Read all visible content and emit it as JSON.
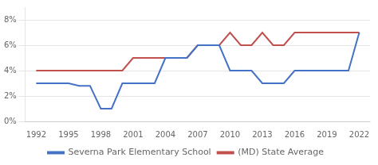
{
  "chart_data": {
    "type": "line",
    "series": [
      {
        "name": "Severna Park Elementary School",
        "color": "#4472c4",
        "x": [
          1992,
          1993,
          1995,
          1996,
          1997,
          1998,
          1999,
          2000,
          2001,
          2002,
          2003,
          2004,
          2005,
          2006,
          2007,
          2008,
          2009,
          2010,
          2011,
          2012,
          2013,
          2014,
          2015,
          2016,
          2017,
          2018,
          2019,
          2020,
          2021,
          2022
        ],
        "values": [
          3.0,
          3.0,
          3.0,
          2.8,
          2.8,
          1.0,
          1.0,
          3.0,
          3.0,
          3.0,
          3.0,
          5.0,
          5.0,
          5.0,
          6.0,
          6.0,
          6.0,
          4.0,
          4.0,
          4.0,
          3.0,
          3.0,
          3.0,
          4.0,
          4.0,
          4.0,
          4.0,
          4.0,
          4.0,
          7.0
        ]
      },
      {
        "name": "(MD) State Average",
        "color": "#c0504d",
        "x": [
          1992,
          1993,
          1994,
          1995,
          1996,
          1997,
          1998,
          1999,
          2000,
          2001,
          2002,
          2003,
          2004,
          2005,
          2006,
          2007,
          2008,
          2009,
          2010,
          2011,
          2012,
          2013,
          2014,
          2015,
          2016,
          2017,
          2018,
          2019,
          2020,
          2021,
          2022
        ],
        "values": [
          4.0,
          4.0,
          4.0,
          4.0,
          4.0,
          4.0,
          4.0,
          4.0,
          4.0,
          5.0,
          5.0,
          5.0,
          5.0,
          5.0,
          5.0,
          6.0,
          6.0,
          6.0,
          7.0,
          6.0,
          6.0,
          7.0,
          6.0,
          6.0,
          7.0,
          7.0,
          7.0,
          7.0,
          7.0,
          7.0,
          7.0
        ]
      }
    ],
    "xlim": [
      1991.0,
      2023.0
    ],
    "xticks": [
      1992,
      1995,
      1998,
      2001,
      2004,
      2007,
      2010,
      2013,
      2016,
      2019,
      2022
    ],
    "ylim": [
      0,
      9
    ],
    "yticks": [
      {
        "value": 0,
        "label": "0%"
      },
      {
        "value": 2,
        "label": "2%"
      },
      {
        "value": 4,
        "label": "4%"
      },
      {
        "value": 6,
        "label": "6%"
      },
      {
        "value": 8,
        "label": "8%"
      }
    ],
    "grid": "y",
    "legend": "bottom"
  }
}
